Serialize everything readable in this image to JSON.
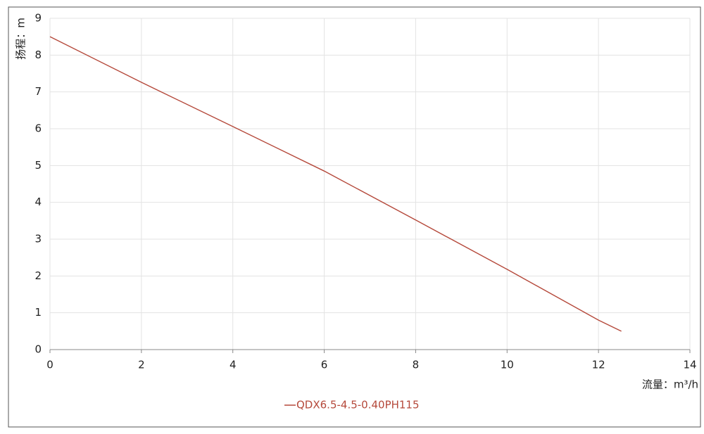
{
  "chart_data": {
    "type": "line",
    "x_label": "流量：m³/h",
    "y_label": "扬程：m",
    "x": [
      0,
      2,
      4,
      6,
      8,
      10,
      12,
      12.5
    ],
    "series": [
      {
        "name": "QDX6.5-4.5-0.40PH115",
        "color": "#b5493b",
        "values": [
          8.5,
          7.26,
          6.06,
          4.85,
          3.52,
          2.18,
          0.8,
          0.5
        ]
      }
    ],
    "xlim": [
      0,
      14
    ],
    "xticks": [
      0,
      2,
      4,
      6,
      8,
      10,
      12,
      14
    ],
    "ylim": [
      0,
      9
    ],
    "yticks": [
      0,
      1,
      2,
      3,
      4,
      5,
      6,
      7,
      8,
      9
    ],
    "grid": true
  }
}
